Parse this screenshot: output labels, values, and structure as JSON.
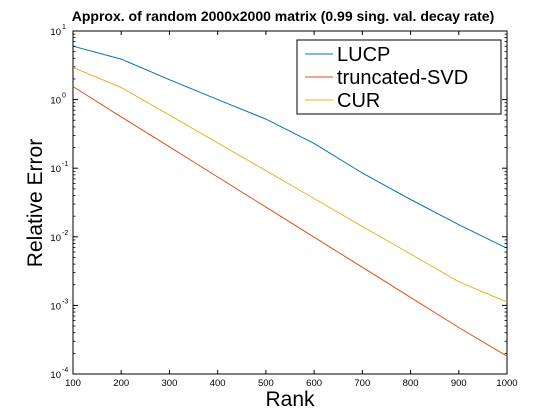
{
  "chart_data": {
    "type": "line",
    "title": "Approx. of random 2000x2000 matrix (0.99 sing. val. decay rate)",
    "xlabel": "Rank",
    "ylabel": "Relative Error",
    "xlim": [
      100,
      1000
    ],
    "ylim": [
      0.0001,
      10
    ],
    "yscale": "log",
    "grid": false,
    "legend_position": "top-right",
    "x": [
      100,
      200,
      300,
      400,
      500,
      600,
      700,
      800,
      900,
      1000
    ],
    "xticks": [
      "100",
      "200",
      "300",
      "400",
      "500",
      "600",
      "700",
      "800",
      "900",
      "1000"
    ],
    "yticks": [
      {
        "base": "10",
        "exp": "-4",
        "value": 0.0001
      },
      {
        "base": "10",
        "exp": "-3",
        "value": 0.001
      },
      {
        "base": "10",
        "exp": "-2",
        "value": 0.01
      },
      {
        "base": "10",
        "exp": "-1",
        "value": 0.1
      },
      {
        "base": "10",
        "exp": "0",
        "value": 1
      },
      {
        "base": "10",
        "exp": "1",
        "value": 10
      }
    ],
    "series": [
      {
        "name": "LUCP",
        "color": "#0072bd",
        "values": [
          6.0,
          3.9,
          1.95,
          1.0,
          0.52,
          0.23,
          0.085,
          0.035,
          0.015,
          0.0068
        ]
      },
      {
        "name": "truncated-SVD",
        "color": "#d95319",
        "values": [
          1.55,
          0.56,
          0.205,
          0.0745,
          0.0271,
          0.00988,
          0.0036,
          0.00131,
          0.000476,
          0.000182
        ]
      },
      {
        "name": "CUR",
        "color": "#edb120",
        "values": [
          2.95,
          1.5,
          0.595,
          0.234,
          0.092,
          0.0362,
          0.0142,
          0.00562,
          0.00221,
          0.00112
        ]
      }
    ]
  }
}
